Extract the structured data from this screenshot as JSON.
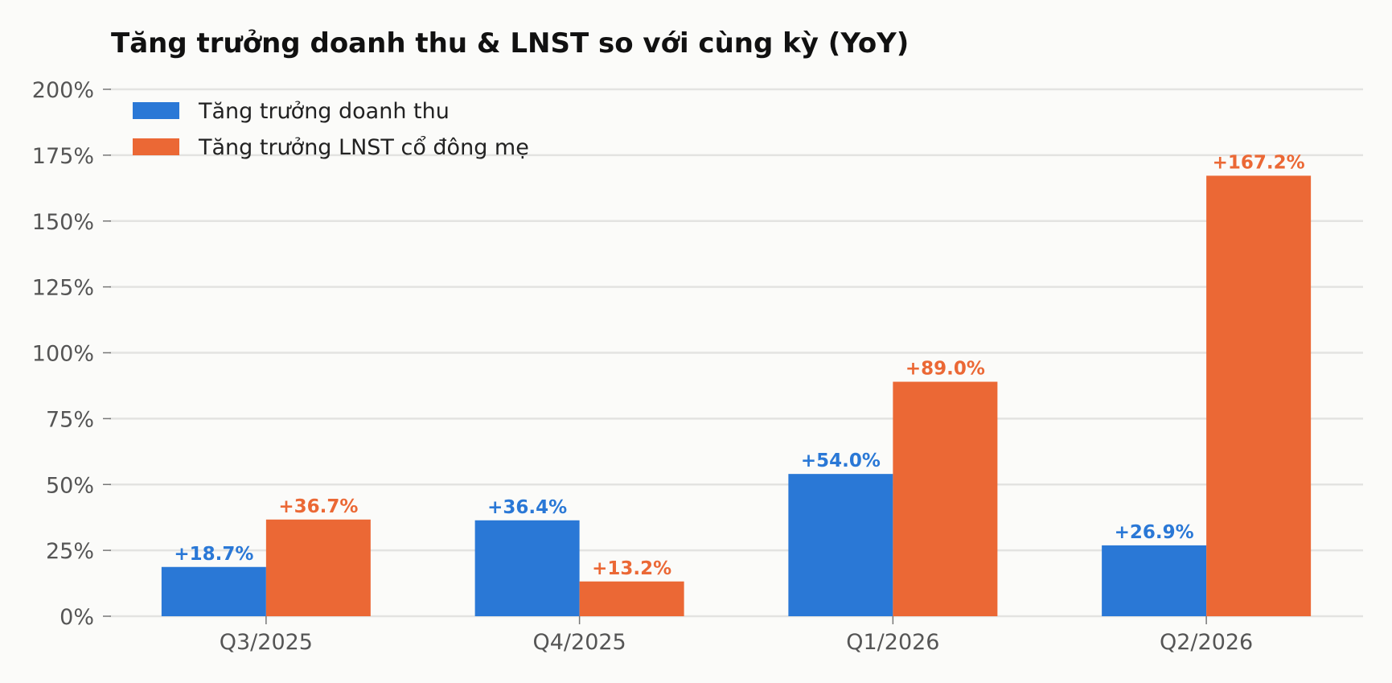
{
  "chart_data": {
    "type": "bar",
    "title": "Tăng trưởng doanh thu & LNST so với cùng kỳ (YoY)",
    "xlabel": "",
    "ylabel": "",
    "categories": [
      "Q3/2025",
      "Q4/2025",
      "Q1/2026",
      "Q2/2026"
    ],
    "series": [
      {
        "name": "Tăng trưởng doanh thu",
        "color": "#2a78d6",
        "values": [
          18.7,
          36.4,
          54.0,
          26.9
        ],
        "labels": [
          "+18.7%",
          "+36.4%",
          "+54.0%",
          "+26.9%"
        ]
      },
      {
        "name": "Tăng trưởng LNST cổ đông mẹ",
        "color": "#eb6835",
        "values": [
          36.7,
          13.2,
          89.0,
          167.2
        ],
        "labels": [
          "+36.7%",
          "+13.2%",
          "+89.0%",
          "+167.2%"
        ]
      }
    ],
    "ylim": [
      0,
      200
    ],
    "yticks": [
      0,
      25,
      50,
      75,
      100,
      125,
      150,
      175,
      200
    ],
    "ytick_labels": [
      "0%",
      "25%",
      "50%",
      "75%",
      "100%",
      "125%",
      "150%",
      "175%",
      "200%"
    ],
    "grid": true,
    "legend_position": "top-left"
  }
}
